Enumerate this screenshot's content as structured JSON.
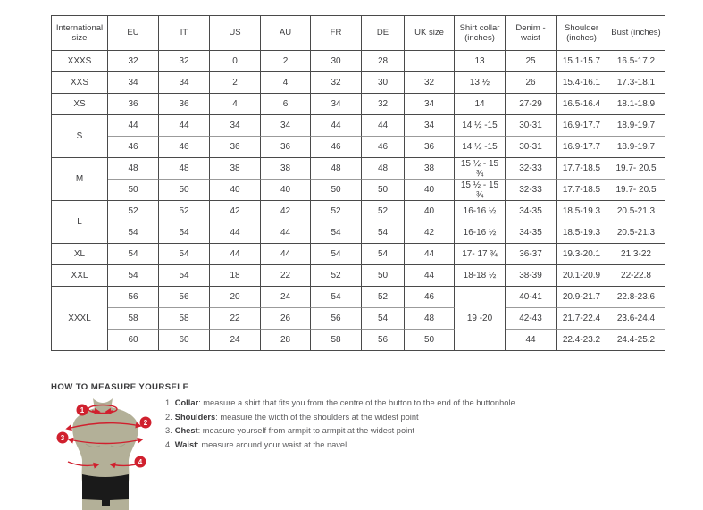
{
  "colors": {
    "accent_red": "#d0202e",
    "torso_khaki": "#b3b098",
    "shorts_black": "#1a1a1a",
    "table_border": "#4a4a4a",
    "table_border_inner": "#9b9b9b",
    "text_dark": "#3d3d3f",
    "text_muted": "#5b5b5d"
  },
  "size_chart": {
    "headers": [
      "International size",
      "EU",
      "IT",
      "US",
      "AU",
      "FR",
      "DE",
      "UK size",
      "Shirt collar (inches)",
      "Denim - waist",
      "Shoulder (inches)",
      "Bust (inches)"
    ],
    "groups": [
      {
        "size": "XXXS",
        "rows": [
          [
            "32",
            "32",
            "0",
            "2",
            "30",
            "28",
            "",
            "13",
            "25",
            "15.1-15.7",
            "16.5-17.2"
          ]
        ]
      },
      {
        "size": "XXS",
        "rows": [
          [
            "34",
            "34",
            "2",
            "4",
            "32",
            "30",
            "32",
            "13 ½",
            "26",
            "15.4-16.1",
            "17.3-18.1"
          ]
        ]
      },
      {
        "size": "XS",
        "rows": [
          [
            "36",
            "36",
            "4",
            "6",
            "34",
            "32",
            "34",
            "14",
            "27-29",
            "16.5-16.4",
            "18.1-18.9"
          ]
        ]
      },
      {
        "size": "S",
        "rows": [
          [
            "44",
            "44",
            "34",
            "34",
            "44",
            "44",
            "34",
            "14 ½ -15",
            "30-31",
            "16.9-17.7",
            "18.9-19.7"
          ],
          [
            "46",
            "46",
            "36",
            "36",
            "46",
            "46",
            "36",
            "14 ½ -15",
            "30-31",
            "16.9-17.7",
            "18.9-19.7"
          ]
        ]
      },
      {
        "size": "M",
        "rows": [
          [
            "48",
            "48",
            "38",
            "38",
            "48",
            "48",
            "38",
            "15 ½ - 15 ¾",
            "32-33",
            "17.7-18.5",
            "19.7- 20.5"
          ],
          [
            "50",
            "50",
            "40",
            "40",
            "50",
            "50",
            "40",
            "15 ½ - 15 ¾",
            "32-33",
            "17.7-18.5",
            "19.7- 20.5"
          ]
        ]
      },
      {
        "size": "L",
        "rows": [
          [
            "52",
            "52",
            "42",
            "42",
            "52",
            "52",
            "40",
            "16-16 ½",
            "34-35",
            "18.5-19.3",
            "20.5-21.3"
          ],
          [
            "54",
            "54",
            "44",
            "44",
            "54",
            "54",
            "42",
            "16-16 ½",
            "34-35",
            "18.5-19.3",
            "20.5-21.3"
          ]
        ]
      },
      {
        "size": "XL",
        "rows": [
          [
            "54",
            "54",
            "44",
            "44",
            "54",
            "54",
            "44",
            "17- 17 ¾",
            "36-37",
            "19.3-20.1",
            "21.3-22"
          ]
        ]
      },
      {
        "size": "XXL",
        "rows": [
          [
            "54",
            "54",
            "18",
            "22",
            "52",
            "50",
            "44",
            "18-18 ½",
            "38-39",
            "20.1-20.9",
            "22-22.8"
          ]
        ]
      },
      {
        "size": "XXXL",
        "collar_merged": "19 -20",
        "rows": [
          [
            "56",
            "56",
            "20",
            "24",
            "54",
            "52",
            "46",
            "40-41",
            "20.9-21.7",
            "22.8-23.6"
          ],
          [
            "58",
            "58",
            "22",
            "26",
            "56",
            "54",
            "48",
            "42-43",
            "21.7-22.4",
            "23.6-24.4"
          ],
          [
            "60",
            "60",
            "24",
            "28",
            "58",
            "56",
            "50",
            "44",
            "22.4-23.2",
            "24.4-25.2"
          ]
        ]
      }
    ]
  },
  "how_to_measure": {
    "title": "HOW TO MEASURE YOURSELF",
    "steps": [
      {
        "num": "1.",
        "label": "Collar",
        "text": ": measure a shirt that fits you from the centre of the button to the end of the buttonhole"
      },
      {
        "num": "2.",
        "label": "Shoulders",
        "text": ": measure the width of the shoulders at the widest point"
      },
      {
        "num": "3.",
        "label": "Chest",
        "text": ": measure yourself from armpit to armpit at the widest point"
      },
      {
        "num": "4.",
        "label": "Waist",
        "text": ": measure around your waist at the navel"
      }
    ],
    "figure_markers": [
      "1",
      "2",
      "3",
      "4"
    ]
  }
}
